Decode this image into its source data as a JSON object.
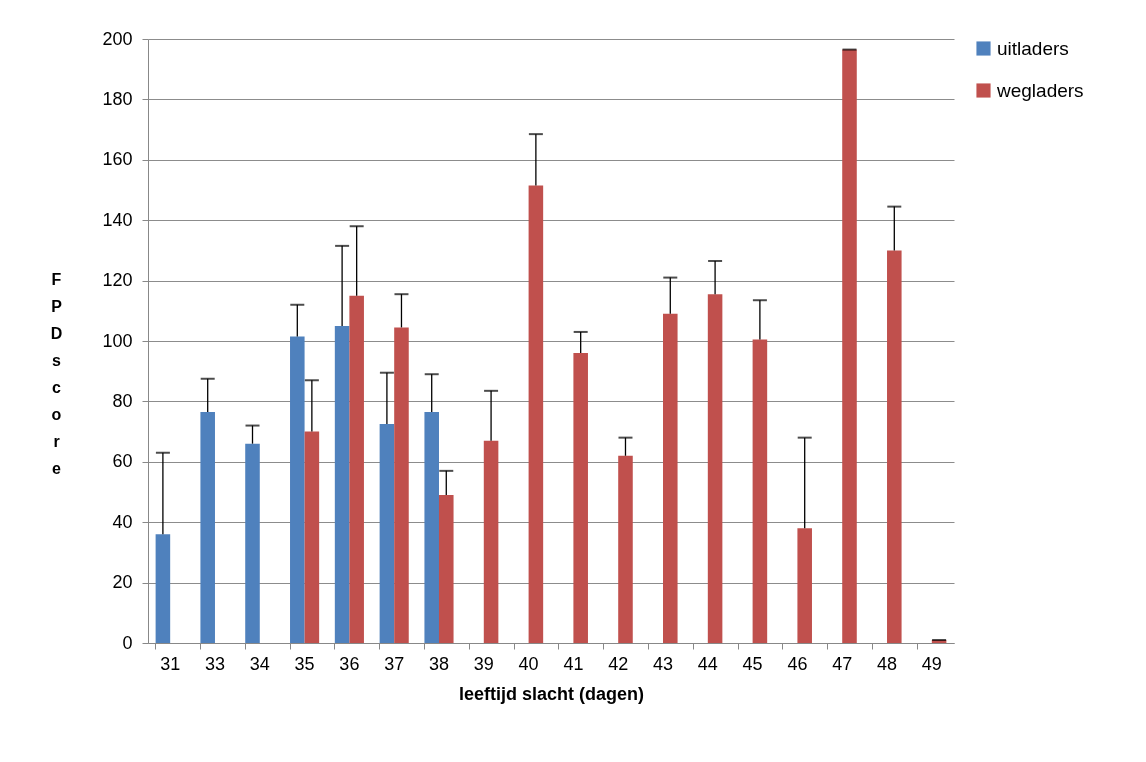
{
  "chart_data": {
    "type": "bar",
    "xlabel": "leeftijd slacht (dagen)",
    "ylabel": "FPD score",
    "categories": [
      "31",
      "33",
      "34",
      "35",
      "36",
      "37",
      "38",
      "39",
      "40",
      "41",
      "42",
      "43",
      "44",
      "45",
      "46",
      "47",
      "48",
      "49"
    ],
    "series": [
      {
        "name": "uitladers",
        "color": "#4f81bd",
        "values": [
          36,
          76.5,
          66,
          101.5,
          105,
          72.5,
          76.5,
          null,
          null,
          null,
          null,
          null,
          null,
          null,
          null,
          null,
          null,
          null
        ],
        "errors": [
          [
            36,
            63
          ],
          [
            76.5,
            87.5
          ],
          [
            66,
            72
          ],
          [
            101.5,
            112
          ],
          [
            105,
            131.5
          ],
          [
            72.5,
            89.5
          ],
          [
            76.5,
            89
          ],
          null,
          null,
          null,
          null,
          null,
          null,
          null,
          null,
          null,
          null,
          null
        ]
      },
      {
        "name": "wegladers",
        "color": "#c0504d",
        "values": [
          null,
          null,
          null,
          70,
          115,
          104.5,
          49,
          67,
          151.5,
          96,
          62,
          109,
          115.5,
          100.5,
          38,
          196.5,
          130,
          1
        ],
        "errors": [
          null,
          null,
          null,
          [
            70,
            87
          ],
          [
            115,
            138
          ],
          [
            104.5,
            115.5
          ],
          [
            49,
            57
          ],
          [
            67,
            83.5
          ],
          [
            151.5,
            168.5
          ],
          [
            96,
            103
          ],
          [
            62,
            68
          ],
          [
            109,
            121
          ],
          [
            115.5,
            126.5
          ],
          [
            100.5,
            113.5
          ],
          [
            38,
            68
          ],
          [
            196.5,
            196.5
          ],
          [
            130,
            144.5
          ],
          [
            1,
            1
          ]
        ]
      }
    ],
    "ylim": [
      0,
      200
    ],
    "yticks": [
      0,
      20,
      40,
      60,
      80,
      100,
      120,
      140,
      160,
      180,
      200
    ],
    "grid": "y",
    "legend": "right"
  }
}
